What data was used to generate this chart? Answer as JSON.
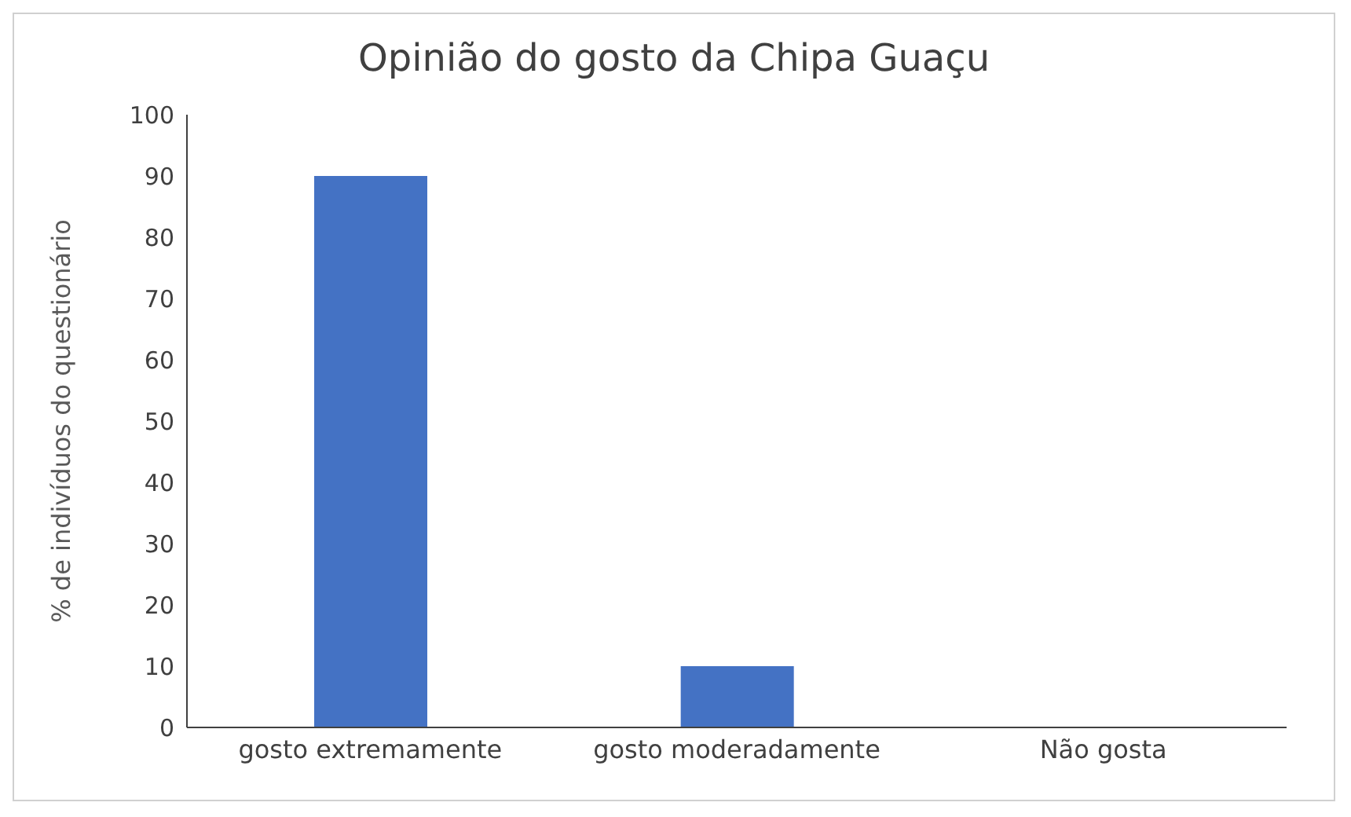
{
  "chart_data": {
    "type": "bar",
    "title": "Opinião do gosto da Chipa Guaçu",
    "ylabel": "% de indivíduos do questionário",
    "categories": [
      "gosto extremamente",
      "gosto moderadamente",
      "Não gosta"
    ],
    "values": [
      90,
      10,
      0
    ],
    "color": "#4472c4",
    "ylim": [
      0,
      100
    ],
    "yticks": [
      0,
      10,
      20,
      30,
      40,
      50,
      60,
      70,
      80,
      90,
      100
    ],
    "grid": false
  }
}
